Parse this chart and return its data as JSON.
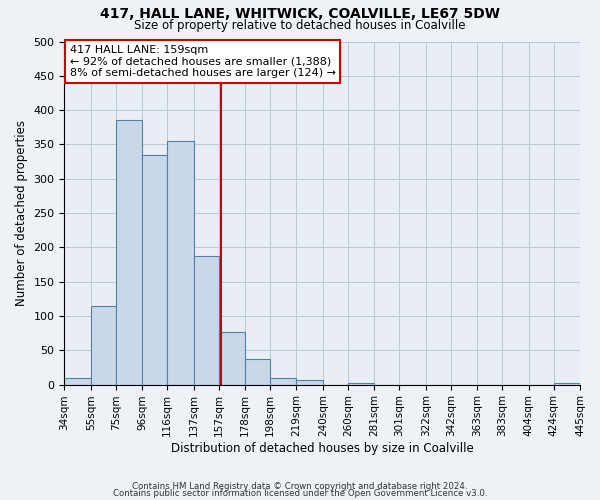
{
  "title": "417, HALL LANE, WHITWICK, COALVILLE, LE67 5DW",
  "subtitle": "Size of property relative to detached houses in Coalville",
  "xlabel": "Distribution of detached houses by size in Coalville",
  "ylabel": "Number of detached properties",
  "bin_labels": [
    "34sqm",
    "55sqm",
    "75sqm",
    "96sqm",
    "116sqm",
    "137sqm",
    "157sqm",
    "178sqm",
    "198sqm",
    "219sqm",
    "240sqm",
    "260sqm",
    "281sqm",
    "301sqm",
    "322sqm",
    "342sqm",
    "363sqm",
    "383sqm",
    "404sqm",
    "424sqm",
    "445sqm"
  ],
  "bin_edges": [
    34,
    55,
    75,
    96,
    116,
    137,
    157,
    178,
    198,
    219,
    240,
    260,
    281,
    301,
    322,
    342,
    363,
    383,
    404,
    424,
    445
  ],
  "bar_heights": [
    10,
    114,
    385,
    335,
    355,
    188,
    76,
    38,
    10,
    6,
    0,
    2,
    0,
    0,
    0,
    0,
    0,
    0,
    0,
    2
  ],
  "bar_color": "#c8d8e8",
  "bar_edge_color": "#5580a0",
  "property_line_x": 159,
  "property_line_color": "#cc0000",
  "annotation_title": "417 HALL LANE: 159sqm",
  "annotation_line1": "← 92% of detached houses are smaller (1,388)",
  "annotation_line2": "8% of semi-detached houses are larger (124) →",
  "annotation_box_color": "#cc0000",
  "ylim": [
    0,
    500
  ],
  "yticks": [
    0,
    50,
    100,
    150,
    200,
    250,
    300,
    350,
    400,
    450,
    500
  ],
  "footer1": "Contains HM Land Registry data © Crown copyright and database right 2024.",
  "footer2": "Contains public sector information licensed under the Open Government Licence v3.0.",
  "background_color": "#eef2f6",
  "plot_background_color": "#e8eef4"
}
